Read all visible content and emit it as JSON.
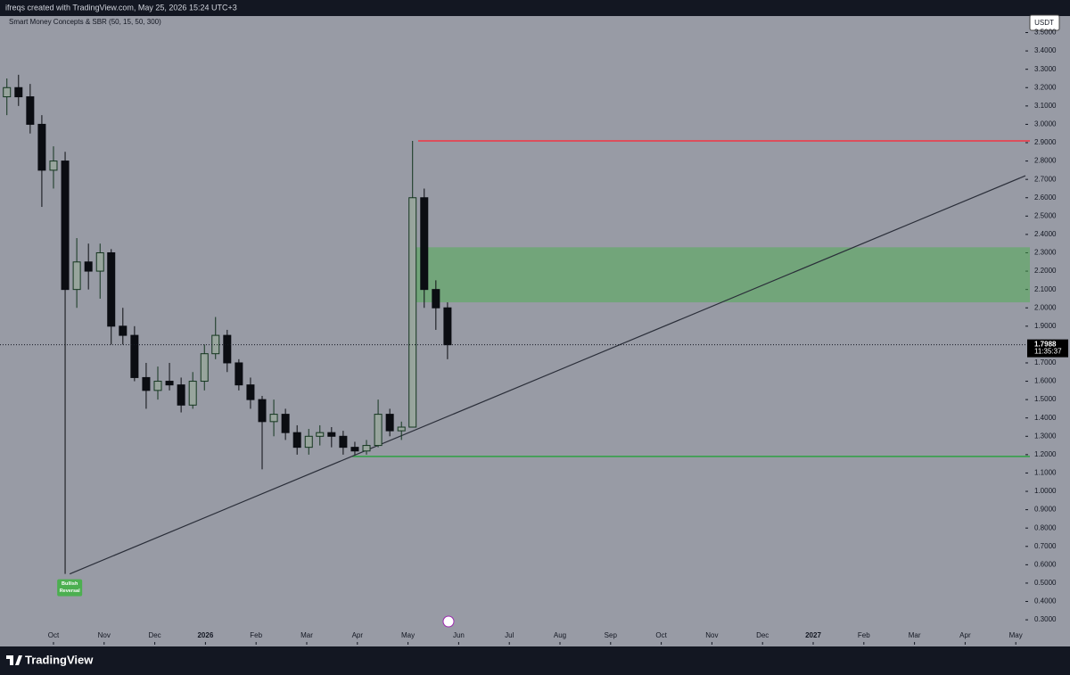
{
  "chart_data": {
    "type": "candlestick",
    "watermark": "ifreqs created with TradingView.com, May 25, 2026 15:24 UTC+3",
    "indicator": "Smart Money Concepts & SBR (50, 15, 50, 300)",
    "currency": "USDT",
    "brand": "TradingView",
    "x": [
      -0.92,
      -0.69,
      -0.46,
      -0.23,
      0,
      0.23,
      0.46,
      0.69,
      0.92,
      1.14,
      1.37,
      1.6,
      1.83,
      2.06,
      2.29,
      2.52,
      2.75,
      2.98,
      3.2,
      3.43,
      3.66,
      3.89,
      4.12,
      4.35,
      4.58,
      4.81,
      5.04,
      5.26,
      5.49,
      5.72,
      5.95,
      6.18,
      6.41,
      6.64,
      6.87,
      7.09,
      7.32,
      7.55,
      7.78
    ],
    "open": [
      3.15,
      3.2,
      3.15,
      3.0,
      2.75,
      2.8,
      2.1,
      2.25,
      2.2,
      2.3,
      1.9,
      1.85,
      1.62,
      1.55,
      1.6,
      1.58,
      1.47,
      1.6,
      1.75,
      1.85,
      1.7,
      1.58,
      1.5,
      1.38,
      1.42,
      1.32,
      1.24,
      1.3,
      1.32,
      1.3,
      1.24,
      1.22,
      1.25,
      1.42,
      1.33,
      1.35,
      2.6,
      2.1,
      2.0
    ],
    "high": [
      3.25,
      3.27,
      3.22,
      3.05,
      2.88,
      2.85,
      2.38,
      2.35,
      2.35,
      2.32,
      2.0,
      1.9,
      1.7,
      1.68,
      1.7,
      1.62,
      1.65,
      1.8,
      1.95,
      1.88,
      1.72,
      1.62,
      1.52,
      1.5,
      1.45,
      1.36,
      1.34,
      1.36,
      1.35,
      1.33,
      1.27,
      1.28,
      1.5,
      1.45,
      1.38,
      2.91,
      2.65,
      2.15,
      2.03
    ],
    "low": [
      3.05,
      3.1,
      2.95,
      2.55,
      2.65,
      0.55,
      2.0,
      2.1,
      2.05,
      1.8,
      1.8,
      1.6,
      1.45,
      1.5,
      1.55,
      1.43,
      1.45,
      1.55,
      1.72,
      1.65,
      1.55,
      1.45,
      1.12,
      1.3,
      1.28,
      1.2,
      1.2,
      1.25,
      1.24,
      1.2,
      1.2,
      1.2,
      1.24,
      1.3,
      1.28,
      1.35,
      2.0,
      1.88,
      1.72
    ],
    "close": [
      3.2,
      3.15,
      3.0,
      2.75,
      2.8,
      2.1,
      2.25,
      2.2,
      2.3,
      1.9,
      1.85,
      1.62,
      1.55,
      1.6,
      1.58,
      1.47,
      1.6,
      1.75,
      1.85,
      1.7,
      1.58,
      1.5,
      1.38,
      1.42,
      1.32,
      1.24,
      1.3,
      1.32,
      1.3,
      1.24,
      1.22,
      1.25,
      1.42,
      1.33,
      1.35,
      2.6,
      2.1,
      2.0,
      1.7988
    ],
    "up_color": "#14361f",
    "down_color": "#0b0d12",
    "xlim": [
      -1.056,
      19.19
    ],
    "ylim": [
      0.179,
      3.59
    ],
    "xticks": [
      {
        "value": 0,
        "label": "Oct"
      },
      {
        "value": 1,
        "label": "Nov"
      },
      {
        "value": 2,
        "label": "Dec"
      },
      {
        "value": 3,
        "label": "2026"
      },
      {
        "value": 4,
        "label": "Feb"
      },
      {
        "value": 5,
        "label": "Mar"
      },
      {
        "value": 6,
        "label": "Apr"
      },
      {
        "value": 7,
        "label": "May"
      },
      {
        "value": 8,
        "label": "Jun"
      },
      {
        "value": 9,
        "label": "Jul"
      },
      {
        "value": 10,
        "label": "Aug"
      },
      {
        "value": 11,
        "label": "Sep"
      },
      {
        "value": 12,
        "label": "Oct"
      },
      {
        "value": 13,
        "label": "Nov"
      },
      {
        "value": 14,
        "label": "Dec"
      },
      {
        "value": 15,
        "label": "2027"
      },
      {
        "value": 16,
        "label": "Feb"
      },
      {
        "value": 17,
        "label": "Mar"
      },
      {
        "value": 18,
        "label": "Apr"
      },
      {
        "value": 19,
        "label": "May"
      }
    ],
    "yticks": [
      {
        "value": 0.3,
        "label": "0.3000"
      },
      {
        "value": 0.4,
        "label": "0.4000"
      },
      {
        "value": 0.5,
        "label": "0.5000"
      },
      {
        "value": 0.6,
        "label": "0.6000"
      },
      {
        "value": 0.7,
        "label": "0.7000"
      },
      {
        "value": 0.8,
        "label": "0.8000"
      },
      {
        "value": 0.9,
        "label": "0.9000"
      },
      {
        "value": 1.0,
        "label": "1.0000"
      },
      {
        "value": 1.1,
        "label": "1.1000"
      },
      {
        "value": 1.2,
        "label": "1.2000"
      },
      {
        "value": 1.3,
        "label": "1.3000"
      },
      {
        "value": 1.4,
        "label": "1.4000"
      },
      {
        "value": 1.5,
        "label": "1.5000"
      },
      {
        "value": 1.6,
        "label": "1.6000"
      },
      {
        "value": 1.7,
        "label": "1.7000"
      },
      {
        "value": 1.9,
        "label": "1.9000"
      },
      {
        "value": 2.0,
        "label": "2.0000"
      },
      {
        "value": 2.1,
        "label": "2.1000"
      },
      {
        "value": 2.2,
        "label": "2.2000"
      },
      {
        "value": 2.3,
        "label": "2.3000"
      },
      {
        "value": 2.4,
        "label": "2.4000"
      },
      {
        "value": 2.5,
        "label": "2.5000"
      },
      {
        "value": 2.6,
        "label": "2.6000"
      },
      {
        "value": 2.7,
        "label": "2.7000"
      },
      {
        "value": 2.8,
        "label": "2.8000"
      },
      {
        "value": 2.9,
        "label": "2.9000"
      },
      {
        "value": 3.0,
        "label": "3.0000"
      },
      {
        "value": 3.1,
        "label": "3.1000"
      },
      {
        "value": 3.2,
        "label": "3.2000"
      },
      {
        "value": 3.3,
        "label": "3.3000"
      },
      {
        "value": 3.4,
        "label": "3.4000"
      },
      {
        "value": 3.5,
        "label": "3.5000"
      }
    ],
    "last_price": {
      "value": 1.7988,
      "countdown": "11:35:37"
    },
    "resistance": {
      "value": 2.91,
      "x_start": 7.2,
      "color": "#f23645"
    },
    "zone": {
      "low": 2.03,
      "high": 2.33,
      "x_start": 7.09,
      "color": "#4caf50"
    },
    "support": {
      "value": 1.19,
      "x_start": 5.9,
      "color": "#2ea043"
    },
    "trendline": {
      "x": [
        0.32,
        19.19
      ],
      "y": [
        0.55,
        2.72
      ],
      "color": "#2a2e39"
    },
    "reversal": {
      "lines": [
        "Bullish",
        "Reversal"
      ],
      "x": 0.32,
      "y": 0.55,
      "color": "#4caf50"
    }
  }
}
